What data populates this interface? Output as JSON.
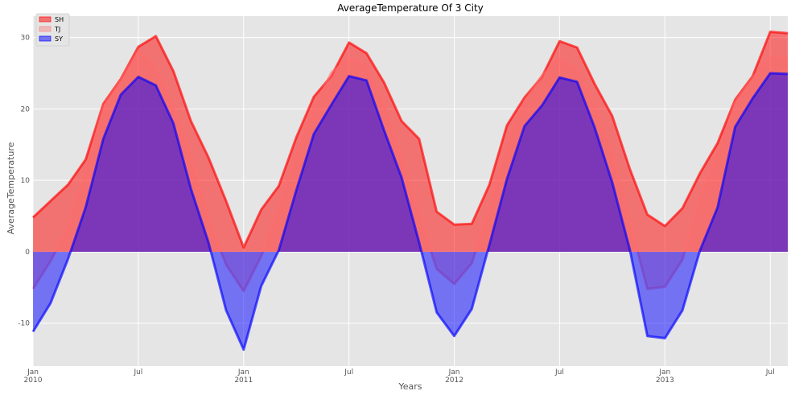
{
  "chart_data": {
    "type": "area",
    "title": "AverageTemperature Of 3 City",
    "xlabel": "Years",
    "ylabel": "AverageTemperature",
    "xlim": [
      "2010-01",
      "2013-08"
    ],
    "ylim": [
      -16,
      33
    ],
    "y_ticks": [
      -10,
      0,
      10,
      20,
      30
    ],
    "x_ticks": [
      {
        "at": "2010-01",
        "label": "Jan",
        "year": "2010"
      },
      {
        "at": "2010-07",
        "label": "Jul",
        "year": ""
      },
      {
        "at": "2011-01",
        "label": "Jan",
        "year": "2011"
      },
      {
        "at": "2011-07",
        "label": "Jul",
        "year": ""
      },
      {
        "at": "2012-01",
        "label": "Jan",
        "year": "2012"
      },
      {
        "at": "2012-07",
        "label": "Jul",
        "year": ""
      },
      {
        "at": "2013-01",
        "label": "Jan",
        "year": "2013"
      },
      {
        "at": "2013-07",
        "label": "Jul",
        "year": ""
      }
    ],
    "grid": true,
    "legend_position": "top-left",
    "x": [
      "2010-01",
      "2010-02",
      "2010-03",
      "2010-04",
      "2010-05",
      "2010-06",
      "2010-07",
      "2010-08",
      "2010-09",
      "2010-10",
      "2010-11",
      "2010-12",
      "2011-01",
      "2011-02",
      "2011-03",
      "2011-04",
      "2011-05",
      "2011-06",
      "2011-07",
      "2011-08",
      "2011-09",
      "2011-10",
      "2011-11",
      "2011-12",
      "2012-01",
      "2012-02",
      "2012-03",
      "2012-04",
      "2012-05",
      "2012-06",
      "2012-07",
      "2012-08",
      "2012-09",
      "2012-10",
      "2012-11",
      "2012-12",
      "2013-01",
      "2013-02",
      "2013-03",
      "2013-04",
      "2013-05",
      "2013-06",
      "2013-07",
      "2013-08"
    ],
    "series": [
      {
        "name": "SH",
        "color": "#ff0000",
        "alpha": 0.5,
        "values": [
          4.8,
          7.1,
          9.4,
          12.9,
          20.7,
          24.2,
          28.7,
          30.2,
          25.3,
          18.3,
          13.2,
          7.1,
          0.6,
          5.9,
          9.2,
          16.0,
          21.7,
          24.6,
          29.3,
          27.8,
          23.7,
          18.3,
          15.8,
          5.6,
          3.8,
          3.9,
          9.4,
          17.7,
          21.6,
          24.5,
          29.5,
          28.6,
          23.5,
          19.0,
          11.6,
          5.2,
          3.6,
          6.1,
          11.0,
          15.2,
          21.3,
          24.6,
          30.8,
          30.6
        ]
      },
      {
        "name": "TJ",
        "color": "#ff6b6b",
        "alpha": 0.35,
        "values": [
          -5.2,
          -1.3,
          3.3,
          11.2,
          20.3,
          24.1,
          28.2,
          25.6,
          20.3,
          13.1,
          4.6,
          -1.8,
          -5.5,
          -0.6,
          6.1,
          13.7,
          20.1,
          25.1,
          27.1,
          26.0,
          20.4,
          13.0,
          5.1,
          -2.4,
          -4.5,
          -1.6,
          6.1,
          15.0,
          21.1,
          24.7,
          27.1,
          25.6,
          20.4,
          13.5,
          4.2,
          -5.2,
          -4.9,
          -1.1,
          7.7,
          13.7,
          21.0,
          24.4,
          27.2,
          27.2
        ]
      },
      {
        "name": "SY",
        "color": "#0000ff",
        "alpha": 0.5,
        "values": [
          -11.2,
          -7.2,
          -1.0,
          6.2,
          15.8,
          22.0,
          24.5,
          23.3,
          18.0,
          8.8,
          1.3,
          -8.2,
          -13.7,
          -4.8,
          0.2,
          8.6,
          16.5,
          20.6,
          24.6,
          24.0,
          17.0,
          10.4,
          1.3,
          -8.5,
          -11.8,
          -8.0,
          1.0,
          10.2,
          17.6,
          20.5,
          24.4,
          23.8,
          17.4,
          9.7,
          0.3,
          -11.8,
          -12.1,
          -8.2,
          0.2,
          6.2,
          17.5,
          21.5,
          25.0,
          24.9
        ]
      }
    ]
  }
}
